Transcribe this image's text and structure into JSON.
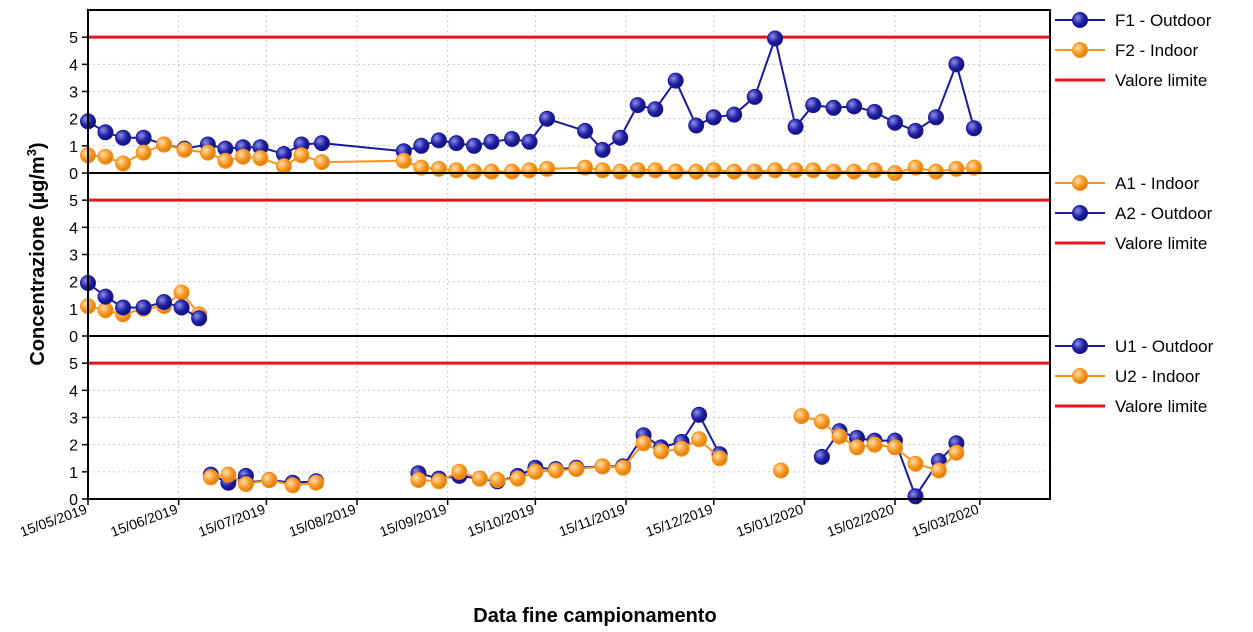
{
  "colors": {
    "outdoor": "#1a1a9c",
    "indoor": "#f7941d",
    "limit": "#e8141c"
  },
  "chart_data": {
    "type": "line",
    "xlabel": "Data fine campionamento",
    "ylabel": "Concentrazione (µg/m",
    "ylabel_sup": "3",
    "ylabel_close": ")",
    "x_ticks": [
      "15/05/2019",
      "15/06/2019",
      "15/07/2019",
      "15/08/2019",
      "15/09/2019",
      "15/10/2019",
      "15/11/2019",
      "15/12/2019",
      "15/01/2020",
      "15/02/2020",
      "15/03/2020"
    ],
    "xlim": [
      "2019-05-15",
      "2020-04-08"
    ],
    "ylim": [
      0,
      6
    ],
    "y_ticks": [
      0,
      1,
      2,
      3,
      4,
      5
    ],
    "grid": true,
    "legend_position": "right",
    "panels": [
      {
        "series": [
          {
            "name": "F1 - Outdoor",
            "color": "outdoor",
            "points": [
              [
                "2019-05-15",
                1.9
              ],
              [
                "2019-05-21",
                1.5
              ],
              [
                "2019-05-27",
                1.3
              ],
              [
                "2019-06-03",
                1.3
              ],
              [
                "2019-06-10",
                1.05
              ],
              [
                "2019-06-17",
                0.9
              ],
              [
                "2019-06-25",
                1.05
              ],
              [
                "2019-07-01",
                0.9
              ],
              [
                "2019-07-07",
                0.95
              ],
              [
                "2019-07-13",
                0.95
              ],
              [
                "2019-07-21",
                0.7
              ],
              [
                "2019-07-27",
                1.05
              ],
              [
                "2019-08-03",
                1.1
              ],
              [
                "2019-08-31",
                0.8
              ],
              [
                "2019-09-06",
                1.0
              ],
              [
                "2019-09-12",
                1.2
              ],
              [
                "2019-09-18",
                1.1
              ],
              [
                "2019-09-24",
                1.0
              ],
              [
                "2019-09-30",
                1.15
              ],
              [
                "2019-10-07",
                1.25
              ],
              [
                "2019-10-13",
                1.15
              ],
              [
                "2019-10-19",
                2.0
              ],
              [
                "2019-11-01",
                1.55
              ],
              [
                "2019-11-07",
                0.85
              ],
              [
                "2019-11-13",
                1.3
              ],
              [
                "2019-11-19",
                2.5
              ],
              [
                "2019-11-25",
                2.35
              ],
              [
                "2019-12-02",
                3.4
              ],
              [
                "2019-12-09",
                1.75
              ],
              [
                "2019-12-15",
                2.05
              ],
              [
                "2019-12-22",
                2.15
              ],
              [
                "2019-12-29",
                2.8
              ],
              [
                "2020-01-05",
                4.95
              ],
              [
                "2020-01-12",
                1.7
              ],
              [
                "2020-01-18",
                2.5
              ],
              [
                "2020-01-25",
                2.4
              ],
              [
                "2020-02-01",
                2.45
              ],
              [
                "2020-02-08",
                2.25
              ],
              [
                "2020-02-15",
                1.85
              ],
              [
                "2020-02-22",
                1.55
              ],
              [
                "2020-02-29",
                2.05
              ],
              [
                "2020-03-07",
                4.0
              ],
              [
                "2020-03-13",
                1.65
              ]
            ]
          },
          {
            "name": "F2 - Indoor",
            "color": "indoor",
            "points": [
              [
                "2019-05-15",
                0.65
              ],
              [
                "2019-05-21",
                0.6
              ],
              [
                "2019-05-27",
                0.35
              ],
              [
                "2019-06-03",
                0.75
              ],
              [
                "2019-06-10",
                1.05
              ],
              [
                "2019-06-17",
                0.85
              ],
              [
                "2019-06-25",
                0.75
              ],
              [
                "2019-07-01",
                0.45
              ],
              [
                "2019-07-07",
                0.6
              ],
              [
                "2019-07-13",
                0.55
              ],
              [
                "2019-07-21",
                0.25
              ],
              [
                "2019-07-27",
                0.65
              ],
              [
                "2019-08-03",
                0.4
              ],
              [
                "2019-08-31",
                0.45
              ],
              [
                "2019-09-06",
                0.2
              ],
              [
                "2019-09-12",
                0.15
              ],
              [
                "2019-09-18",
                0.1
              ],
              [
                "2019-09-24",
                0.05
              ],
              [
                "2019-09-30",
                0.05
              ],
              [
                "2019-10-07",
                0.05
              ],
              [
                "2019-10-13",
                0.1
              ],
              [
                "2019-10-19",
                0.15
              ],
              [
                "2019-11-01",
                0.2
              ],
              [
                "2019-11-07",
                0.1
              ],
              [
                "2019-11-13",
                0.05
              ],
              [
                "2019-11-19",
                0.1
              ],
              [
                "2019-11-25",
                0.1
              ],
              [
                "2019-12-02",
                0.05
              ],
              [
                "2019-12-09",
                0.05
              ],
              [
                "2019-12-15",
                0.1
              ],
              [
                "2019-12-22",
                0.05
              ],
              [
                "2019-12-29",
                0.05
              ],
              [
                "2020-01-05",
                0.1
              ],
              [
                "2020-01-12",
                0.1
              ],
              [
                "2020-01-18",
                0.1
              ],
              [
                "2020-01-25",
                0.05
              ],
              [
                "2020-02-01",
                0.05
              ],
              [
                "2020-02-08",
                0.1
              ],
              [
                "2020-02-15",
                0.0
              ],
              [
                "2020-02-22",
                0.2
              ],
              [
                "2020-02-29",
                0.05
              ],
              [
                "2020-03-07",
                0.15
              ],
              [
                "2020-03-13",
                0.2
              ]
            ]
          },
          {
            "name": "Valore limite",
            "color": "limit",
            "limit": 5
          }
        ],
        "legend_order": [
          "F1 - Outdoor",
          "F2 - Indoor",
          "Valore limite"
        ]
      },
      {
        "series": [
          {
            "name": "A1 - Indoor",
            "color": "indoor",
            "points": [
              [
                "2019-05-15",
                1.1
              ],
              [
                "2019-05-21",
                0.95
              ],
              [
                "2019-05-27",
                0.8
              ],
              [
                "2019-06-03",
                1.0
              ],
              [
                "2019-06-10",
                1.1
              ],
              [
                "2019-06-16",
                1.6
              ],
              [
                "2019-06-22",
                0.8
              ]
            ]
          },
          {
            "name": "A2 - Outdoor",
            "color": "outdoor",
            "points": [
              [
                "2019-05-15",
                1.95
              ],
              [
                "2019-05-21",
                1.45
              ],
              [
                "2019-05-27",
                1.05
              ],
              [
                "2019-06-03",
                1.05
              ],
              [
                "2019-06-10",
                1.25
              ],
              [
                "2019-06-16",
                1.05
              ],
              [
                "2019-06-22",
                0.65
              ]
            ]
          },
          {
            "name": "Valore limite",
            "color": "limit",
            "limit": 5
          }
        ],
        "legend_order": [
          "A1 - Indoor",
          "A2 - Outdoor",
          "Valore limite"
        ]
      },
      {
        "series": [
          {
            "name": "U1 - Outdoor",
            "color": "outdoor",
            "segments": [
              [
                [
                  "2019-06-26",
                  0.9
                ],
                [
                  "2019-07-02",
                  0.6
                ],
                [
                  "2019-07-08",
                  0.85
                ]
              ],
              [
                [
                  "2019-07-08",
                  0.6
                ],
                [
                  "2019-07-16",
                  0.7
                ],
                [
                  "2019-07-24",
                  0.6
                ],
                [
                  "2019-08-01",
                  0.65
                ]
              ],
              [
                [
                  "2019-09-05",
                  0.95
                ],
                [
                  "2019-09-12",
                  0.75
                ],
                [
                  "2019-09-19",
                  0.85
                ],
                [
                  "2019-09-26",
                  0.75
                ],
                [
                  "2019-10-02",
                  0.65
                ],
                [
                  "2019-10-09",
                  0.85
                ],
                [
                  "2019-10-15",
                  1.15
                ],
                [
                  "2019-10-22",
                  1.1
                ],
                [
                  "2019-10-29",
                  1.15
                ],
                [
                  "2019-11-07",
                  1.2
                ],
                [
                  "2019-11-14",
                  1.2
                ],
                [
                  "2019-11-21",
                  2.35
                ],
                [
                  "2019-11-27",
                  1.9
                ],
                [
                  "2019-12-04",
                  2.1
                ],
                [
                  "2019-12-10",
                  3.1
                ],
                [
                  "2019-12-17",
                  1.65
                ]
              ],
              [
                [
                  "2020-01-21",
                  1.55
                ],
                [
                  "2020-01-27",
                  2.5
                ],
                [
                  "2020-02-02",
                  2.25
                ],
                [
                  "2020-02-08",
                  2.15
                ],
                [
                  "2020-02-15",
                  2.15
                ],
                [
                  "2020-02-22",
                  0.1
                ],
                [
                  "2020-03-01",
                  1.4
                ],
                [
                  "2020-03-07",
                  2.05
                ]
              ]
            ]
          },
          {
            "name": "U2 - Indoor",
            "color": "indoor",
            "segments": [
              [
                [
                  "2019-06-26",
                  0.8
                ],
                [
                  "2019-07-02",
                  0.9
                ],
                [
                  "2019-07-08",
                  0.55
                ],
                [
                  "2019-07-16",
                  0.7
                ],
                [
                  "2019-07-24",
                  0.5
                ],
                [
                  "2019-08-01",
                  0.6
                ]
              ],
              [
                [
                  "2019-09-05",
                  0.7
                ],
                [
                  "2019-09-12",
                  0.65
                ],
                [
                  "2019-09-19",
                  1.0
                ],
                [
                  "2019-09-26",
                  0.75
                ],
                [
                  "2019-10-02",
                  0.7
                ],
                [
                  "2019-10-09",
                  0.75
                ],
                [
                  "2019-10-15",
                  1.0
                ],
                [
                  "2019-10-22",
                  1.05
                ],
                [
                  "2019-10-29",
                  1.1
                ],
                [
                  "2019-11-07",
                  1.2
                ],
                [
                  "2019-11-14",
                  1.15
                ],
                [
                  "2019-11-21",
                  2.05
                ],
                [
                  "2019-11-27",
                  1.75
                ],
                [
                  "2019-12-04",
                  1.85
                ],
                [
                  "2019-12-10",
                  2.2
                ],
                [
                  "2019-12-17",
                  1.5
                ]
              ],
              [
                [
                  "2020-01-07",
                  1.05
                ]
              ],
              [
                [
                  "2020-01-14",
                  3.05
                ],
                [
                  "2020-01-21",
                  2.85
                ],
                [
                  "2020-01-27",
                  2.3
                ],
                [
                  "2020-02-02",
                  1.9
                ],
                [
                  "2020-02-08",
                  2.0
                ],
                [
                  "2020-02-15",
                  1.9
                ],
                [
                  "2020-02-22",
                  1.3
                ],
                [
                  "2020-03-01",
                  1.05
                ],
                [
                  "2020-03-07",
                  1.7
                ]
              ]
            ]
          },
          {
            "name": "Valore limite",
            "color": "limit",
            "limit": 5
          }
        ],
        "legend_order": [
          "U1 - Outdoor",
          "U2 - Indoor",
          "Valore limite"
        ]
      }
    ]
  }
}
